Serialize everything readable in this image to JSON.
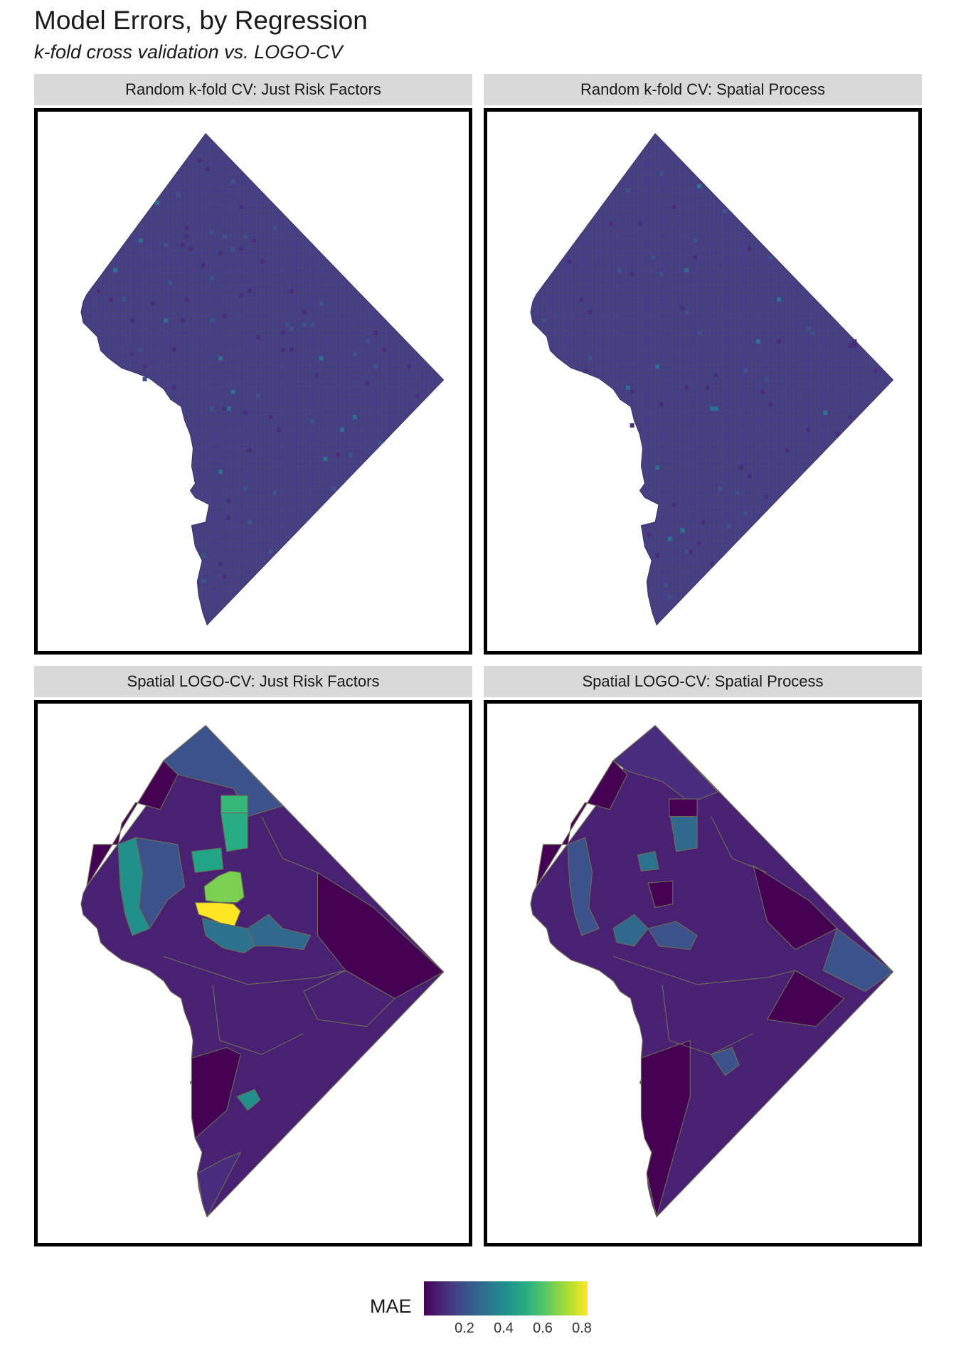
{
  "title": "Model Errors, by Regression",
  "subtitle": "k-fold cross validation vs. LOGO-CV",
  "panels": [
    {
      "label": "Random k-fold CV: Just Risk Factors",
      "type": "grid",
      "base_color": "#433e85"
    },
    {
      "label": "Random k-fold CV: Spatial Process",
      "type": "grid",
      "base_color": "#433e85"
    },
    {
      "label": "Spatial LOGO-CV: Just Risk Factors",
      "type": "regions"
    },
    {
      "label": "Spatial LOGO-CV: Spatial Process",
      "type": "regions"
    }
  ],
  "legend": {
    "title": "MAE",
    "ticks": [
      "0.2",
      "0.4",
      "0.6",
      "0.8"
    ],
    "colors": [
      "#440154",
      "#472d7b",
      "#3b528b",
      "#2c728e",
      "#21908d",
      "#27ad81",
      "#5dc863",
      "#aadc32",
      "#fde725"
    ]
  },
  "colors": {
    "very_low": "#440154",
    "low": "#482173",
    "mid_low": "#433e85",
    "mid": "#31688e",
    "teal": "#21908d",
    "green_teal": "#35b779",
    "green": "#7ad151",
    "yellow": "#fde725"
  }
}
